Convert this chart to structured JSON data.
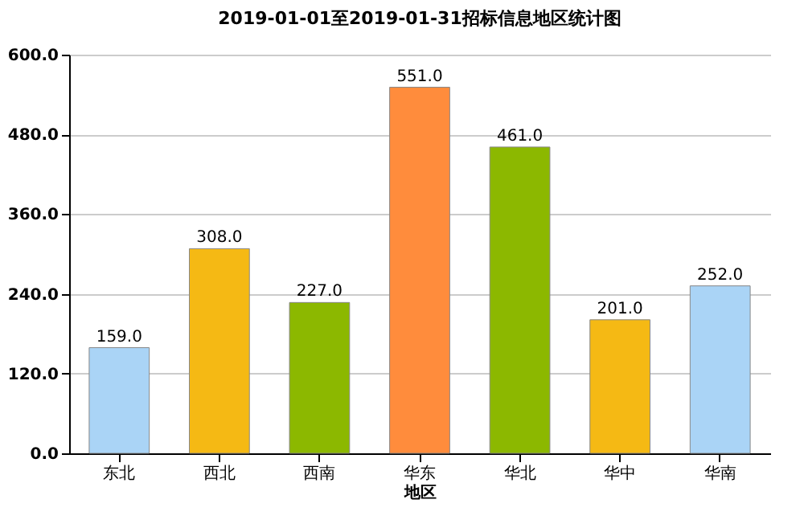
{
  "chart_data": {
    "type": "bar",
    "title": "2019-01-01至2019-01-31招标信息地区统计图",
    "xlabel": "地区",
    "categories": [
      "东北",
      "西北",
      "西南",
      "华东",
      "华北",
      "华中",
      "华南"
    ],
    "values": [
      159,
      308,
      227,
      551,
      461,
      201,
      252
    ],
    "colors": [
      "#aad4f6",
      "#f5b914",
      "#8cb800",
      "#ff8c3c",
      "#8cb800",
      "#f5b914",
      "#aad4f6"
    ],
    "value_labels": [
      "159.0",
      "308.0",
      "227.0",
      "551.0",
      "461.0",
      "201.0",
      "252.0"
    ],
    "ylim": [
      0,
      600
    ],
    "yticks": [
      {
        "value": 0,
        "label": "0.0"
      },
      {
        "value": 120,
        "label": "120.0"
      },
      {
        "value": 240,
        "label": "240.0"
      },
      {
        "value": 360,
        "label": "360.0"
      },
      {
        "value": 480,
        "label": "480.0"
      },
      {
        "value": 600,
        "label": "600.0"
      }
    ],
    "grid": "y"
  }
}
